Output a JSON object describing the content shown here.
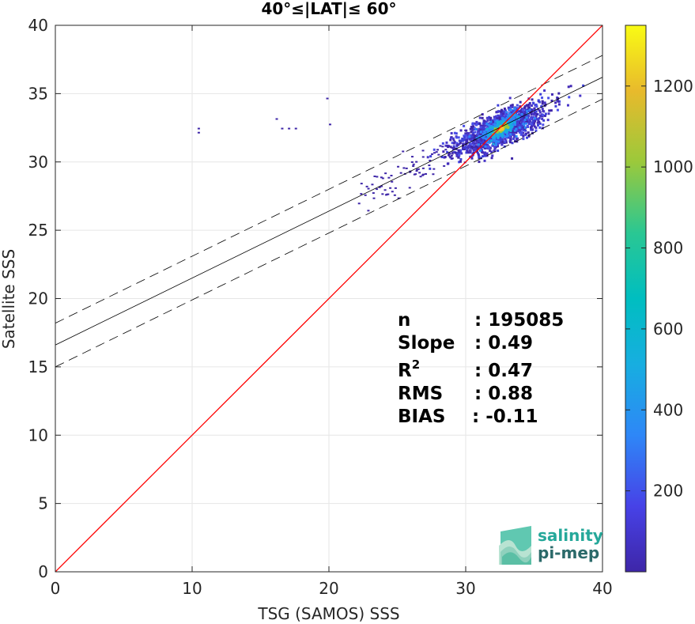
{
  "chart_data": {
    "type": "heatmap",
    "title": "40°≤|LAT|≤ 60°",
    "xlabel": "TSG (SAMOS) SSS",
    "ylabel": "Satellite SSS",
    "xlim": [
      0,
      40
    ],
    "ylim": [
      0,
      40
    ],
    "xticks": [
      "0",
      "10",
      "20",
      "30",
      "40"
    ],
    "yticks": [
      "0",
      "5",
      "10",
      "15",
      "20",
      "25",
      "30",
      "35",
      "40"
    ],
    "grid": true,
    "colorbar": {
      "ticks": [
        "200",
        "400",
        "600",
        "800",
        "1000",
        "1200"
      ],
      "range": [
        0,
        1350
      ],
      "colormap": "parula"
    },
    "lines": {
      "identity": {
        "slope": 1,
        "intercept": 0,
        "color": "#ff0000"
      },
      "fit": {
        "slope": 0.49,
        "intercept": 16.6,
        "color": "#000000"
      },
      "fit_upper": {
        "slope": 0.49,
        "intercept": 18.2,
        "style": "dashed"
      },
      "fit_lower": {
        "slope": 0.49,
        "intercept": 15.0,
        "style": "dashed"
      }
    },
    "density_peak": {
      "x": 32.5,
      "y": 32.5
    },
    "stats": [
      {
        "label": "n",
        "value": ": 195085"
      },
      {
        "label": "Slope",
        "value": ": 0.49"
      },
      {
        "label": "R",
        "sup": "2",
        "value": ": 0.47"
      },
      {
        "label": "RMS",
        "value": ": 0.88"
      },
      {
        "label": "BIAS",
        "value": ": -0.11"
      }
    ]
  },
  "logo": {
    "line1": "salinity",
    "line2": "pi-mep"
  }
}
